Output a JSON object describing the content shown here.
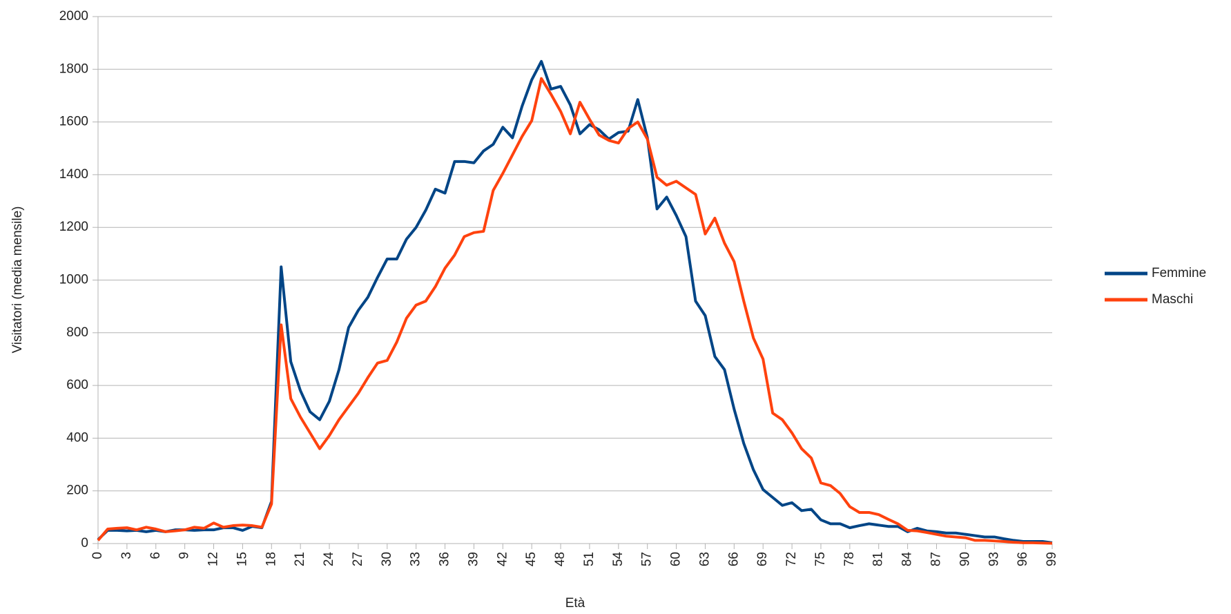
{
  "chart_data": {
    "type": "line",
    "y_label": "Visitatori (media mensile)",
    "x_label": "Età",
    "x": [
      0,
      1,
      2,
      3,
      4,
      5,
      6,
      7,
      8,
      9,
      10,
      11,
      12,
      13,
      14,
      15,
      16,
      17,
      18,
      19,
      20,
      21,
      22,
      23,
      24,
      25,
      26,
      27,
      28,
      29,
      30,
      31,
      32,
      33,
      34,
      35,
      36,
      37,
      38,
      39,
      40,
      41,
      42,
      43,
      44,
      45,
      46,
      47,
      48,
      49,
      50,
      51,
      52,
      53,
      54,
      55,
      56,
      57,
      58,
      59,
      60,
      61,
      62,
      63,
      64,
      65,
      66,
      67,
      68,
      69,
      70,
      71,
      72,
      73,
      74,
      75,
      76,
      77,
      78,
      79,
      80,
      81,
      82,
      83,
      84,
      85,
      86,
      87,
      88,
      89,
      90,
      91,
      92,
      93,
      94,
      95,
      96,
      97,
      98,
      99
    ],
    "xlim": [
      0,
      99
    ],
    "xticks": [
      0,
      3,
      6,
      9,
      12,
      15,
      18,
      21,
      24,
      27,
      30,
      33,
      36,
      39,
      42,
      45,
      48,
      51,
      54,
      57,
      60,
      63,
      66,
      69,
      72,
      75,
      78,
      81,
      84,
      87,
      90,
      93,
      96,
      99
    ],
    "ylim": [
      0,
      2000
    ],
    "yticks": [
      0,
      200,
      400,
      600,
      800,
      1000,
      1200,
      1400,
      1600,
      1800,
      2000
    ],
    "grid": true,
    "legend": "right",
    "series": [
      {
        "name": "Femmine",
        "color": "#004586",
        "values": [
          15,
          50,
          50,
          48,
          50,
          45,
          50,
          45,
          52,
          52,
          50,
          52,
          52,
          60,
          60,
          50,
          65,
          60,
          160,
          1050,
          690,
          580,
          500,
          470,
          540,
          660,
          820,
          885,
          935,
          1010,
          1080,
          1080,
          1155,
          1200,
          1265,
          1345,
          1330,
          1450,
          1450,
          1445,
          1490,
          1515,
          1580,
          1540,
          1660,
          1760,
          1830,
          1725,
          1735,
          1665,
          1555,
          1590,
          1570,
          1535,
          1560,
          1565,
          1685,
          1540,
          1270,
          1315,
          1245,
          1165,
          920,
          865,
          710,
          660,
          510,
          380,
          280,
          205,
          175,
          145,
          155,
          125,
          130,
          90,
          75,
          75,
          60,
          68,
          75,
          70,
          65,
          65,
          45,
          58,
          48,
          45,
          40,
          40,
          35,
          30,
          25,
          25,
          18,
          12,
          8,
          8,
          8,
          3
        ]
      },
      {
        "name": "Maschi",
        "color": "#ff420e",
        "values": [
          12,
          55,
          58,
          60,
          52,
          62,
          55,
          45,
          48,
          52,
          62,
          58,
          78,
          62,
          68,
          70,
          68,
          62,
          150,
          830,
          550,
          480,
          420,
          360,
          410,
          470,
          520,
          570,
          630,
          685,
          695,
          765,
          855,
          905,
          920,
          975,
          1045,
          1095,
          1165,
          1180,
          1185,
          1340,
          1405,
          1475,
          1545,
          1605,
          1765,
          1705,
          1640,
          1555,
          1675,
          1610,
          1550,
          1530,
          1520,
          1575,
          1600,
          1535,
          1390,
          1360,
          1375,
          1350,
          1325,
          1175,
          1235,
          1140,
          1070,
          920,
          780,
          700,
          495,
          470,
          420,
          360,
          325,
          230,
          220,
          190,
          140,
          118,
          118,
          110,
          92,
          75,
          50,
          48,
          42,
          35,
          28,
          25,
          22,
          12,
          12,
          10,
          8,
          5,
          3,
          3,
          2,
          1
        ]
      }
    ]
  }
}
